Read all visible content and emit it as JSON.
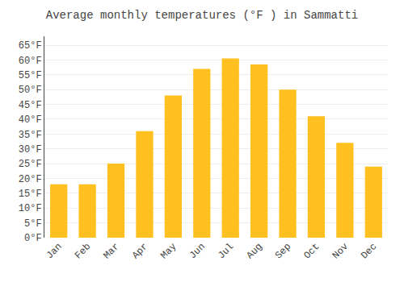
{
  "chart_data": {
    "type": "bar",
    "title": "Average monthly temperatures (°F ) in Sammatti",
    "categories": [
      "Jan",
      "Feb",
      "Mar",
      "Apr",
      "May",
      "Jun",
      "Jul",
      "Aug",
      "Sep",
      "Oct",
      "Nov",
      "Dec"
    ],
    "values": [
      18,
      18,
      25,
      36,
      48,
      57,
      60.5,
      58.5,
      50,
      41,
      32,
      24
    ],
    "color": "#FFC020",
    "ylim": [
      0,
      68
    ],
    "yticks": [
      {
        "value": 0,
        "label": "0°F"
      },
      {
        "value": 5,
        "label": "5°F"
      },
      {
        "value": 10,
        "label": "10°F"
      },
      {
        "value": 15,
        "label": "15°F"
      },
      {
        "value": 20,
        "label": "20°F"
      },
      {
        "value": 25,
        "label": "25°F"
      },
      {
        "value": 30,
        "label": "30°F"
      },
      {
        "value": 35,
        "label": "35°F"
      },
      {
        "value": 40,
        "label": "40°F"
      },
      {
        "value": 45,
        "label": "45°F"
      },
      {
        "value": 50,
        "label": "50°F"
      },
      {
        "value": 55,
        "label": "55°F"
      },
      {
        "value": 60,
        "label": "60°F"
      },
      {
        "value": 65,
        "label": "65°F"
      }
    ],
    "grid": true
  }
}
